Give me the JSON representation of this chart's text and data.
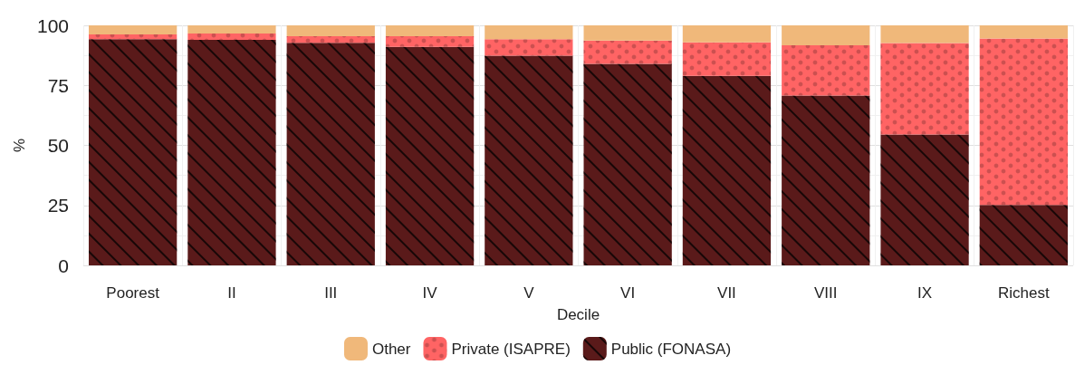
{
  "chart_data": {
    "type": "bar",
    "stacked": true,
    "xlabel": "Decile",
    "ylabel": "%",
    "categories": [
      "Poorest",
      "II",
      "III",
      "IV",
      "V",
      "VI",
      "VII",
      "VIII",
      "IX",
      "Richest"
    ],
    "series": [
      {
        "name": "Public (FONASA)",
        "color": "#5a1a1a",
        "values": [
          94.2,
          94.0,
          92.7,
          91.0,
          87.4,
          84.0,
          79.0,
          70.8,
          54.5,
          25.2
        ]
      },
      {
        "name": "Private (ISAPRE)",
        "color": "#ff6464",
        "values": [
          2.0,
          2.6,
          2.8,
          4.5,
          6.8,
          9.7,
          13.9,
          20.9,
          38.1,
          69.3
        ]
      },
      {
        "name": "Other",
        "color": "#f0b87a",
        "values": [
          3.8,
          3.4,
          4.5,
          4.5,
          5.8,
          6.3,
          7.1,
          8.3,
          7.4,
          5.5
        ]
      }
    ],
    "ylim": [
      0,
      100
    ],
    "yticks": [
      0,
      25,
      50,
      75,
      100
    ],
    "grid": true,
    "legend": "bottom"
  }
}
